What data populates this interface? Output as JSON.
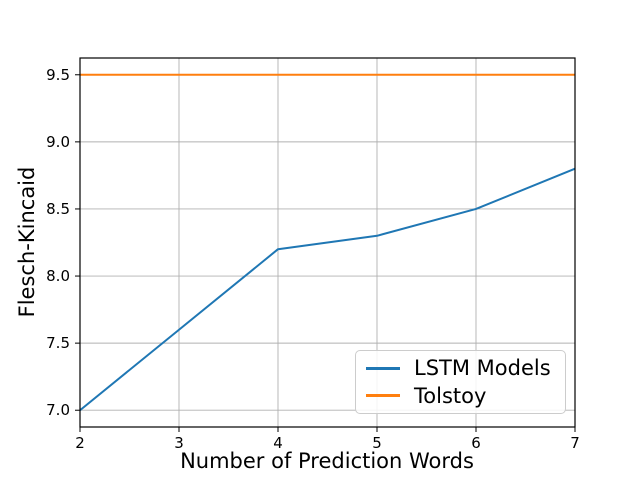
{
  "chart_data": {
    "type": "line",
    "title": "",
    "xlabel": "Number of Prediction Words",
    "ylabel": "Flesch-Kincaid",
    "x": [
      2,
      3,
      4,
      5,
      6,
      7
    ],
    "series": [
      {
        "name": "LSTM Models",
        "color": "#1f77b4",
        "values": [
          7.0,
          7.6,
          8.2,
          8.3,
          8.5,
          8.8
        ]
      },
      {
        "name": "Tolstoy",
        "color": "#ff7f0e",
        "values": [
          9.5,
          9.5,
          9.5,
          9.5,
          9.5,
          9.5
        ]
      }
    ],
    "xlim": [
      2,
      7
    ],
    "ylim": [
      6.875,
      9.625
    ],
    "xticks": [
      "2",
      "3",
      "4",
      "5",
      "6",
      "7"
    ],
    "xtick_values": [
      2,
      3,
      4,
      5,
      6,
      7
    ],
    "yticks": [
      "7.0",
      "7.5",
      "8.0",
      "8.5",
      "9.0",
      "9.5"
    ],
    "ytick_values": [
      7.0,
      7.5,
      8.0,
      8.5,
      9.0,
      9.5
    ],
    "grid": true,
    "legend_position": "lower right",
    "colors": {
      "grid": "#b0b0b0",
      "spine": "#000000",
      "tick_text": "#000000",
      "background": "#ffffff"
    }
  }
}
